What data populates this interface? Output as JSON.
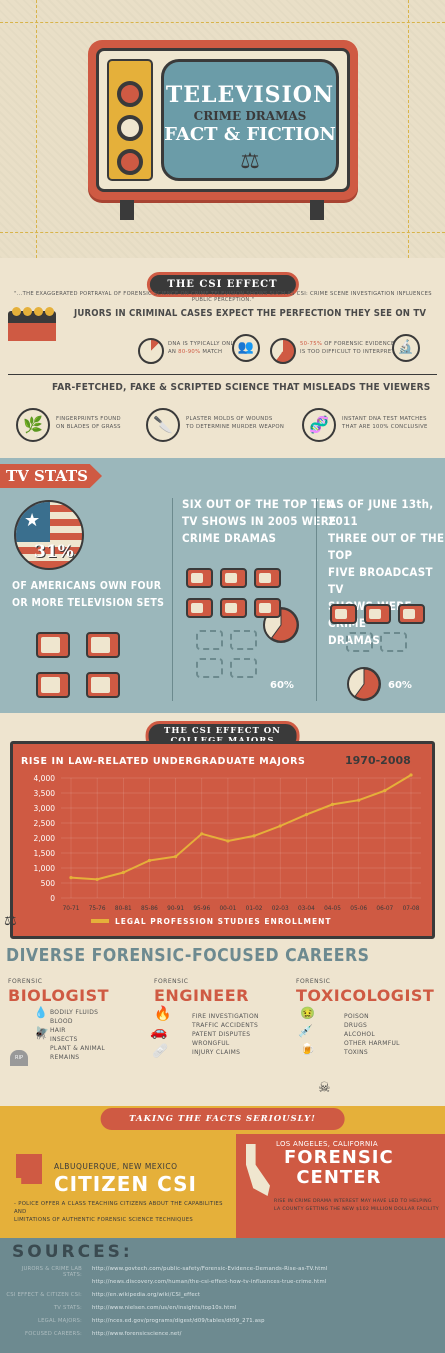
{
  "colors": {
    "red": "#cf5a43",
    "yellow": "#e5b03a",
    "blue": "#9bb7bb",
    "dark": "#3a3a3a",
    "cream": "#eee4cf"
  },
  "header": {
    "line1": "TELEVISION",
    "line2": "CRIME DRAMAS",
    "line3": "FACT & FICTION",
    "icon": "scales-icon"
  },
  "csi_effect": {
    "banner": "THE CSI EFFECT",
    "quote": "\"...THE EXAGGERATED PORTRAYAL OF FORENSIC SCIENCE ON CRIME TELEVISION SHOWS SUCH AS CSI: CRIME SCENE INVESTIGATION INFLUENCES PUBLIC PERCEPTION.\"",
    "jurors_heading": "JURORS IN CRIMINAL CASES EXPECT THE PERFECTION THEY SEE ON TV",
    "dna_l1": "DNA IS TYPICALLY ONLY",
    "dna_l2a": "AN",
    "dna_l2b": "80-90%",
    "dna_l2c": "MATCH",
    "evidence_l1a": "50-75%",
    "evidence_l1b": "OF FORENSIC EVIDENCE",
    "evidence_l2": "IS TOO DIFFICULT TO INTERPRET",
    "fake_heading": "FAR-FETCHED, FAKE & SCRIPTED SCIENCE THAT MISLEADS THE VIEWERS",
    "item1_l1": "FINGERPRINTS FOUND",
    "item1_l2": "ON BLADES OF GRASS",
    "item2_l1": "PLASTER MOLDS OF WOUNDS",
    "item2_l2": "TO DETERMINE MURDER WEAPON",
    "item3_l1": "INSTANT DNA TEST MATCHES",
    "item3_l2": "THAT ARE 100% CONCLUSIVE"
  },
  "tv_stats": {
    "title": "TV STATS",
    "percent": "31%",
    "americans_l1": "OF AMERICANS OWN FOUR",
    "americans_l2": "OR MORE TELEVISION SETS",
    "top_ten_l1": "SIX OUT OF THE TOP TEN",
    "top_ten_l2": "TV SHOWS IN 2005 WERE",
    "top_ten_l3": "CRIME DRAMAS",
    "top_ten_pct": "60%",
    "june_l1": "AS OF JUNE 13th, 2011",
    "june_l2": "THREE OUT OF THE TOP",
    "june_l3": "FIVE BROADCAST TV",
    "june_l4": "SHOWS WERE CRIME",
    "june_l5": "DRAMAS",
    "june_pct": "60%",
    "top_ten_fraction": 0.6,
    "june_fraction": 0.6
  },
  "college": {
    "banner_l1": "THE CSI EFFECT ON",
    "banner_l2": "COLLEGE MAJORS"
  },
  "chart_data": {
    "type": "line",
    "title": "RISE IN LAW-RELATED UNDERGRADUATE MAJORS",
    "title_years": "1970-2008",
    "categories": [
      "70-71",
      "75-76",
      "80-81",
      "85-86",
      "90-91",
      "95-96",
      "00-01",
      "01-02",
      "02-03",
      "03-04",
      "04-05",
      "05-06",
      "06-07",
      "07-08"
    ],
    "y_ticks": [
      "4,000",
      "3,500",
      "3,000",
      "2,500",
      "2,000",
      "1,500",
      "1,000",
      "500",
      "0"
    ],
    "ylim": [
      0,
      4000
    ],
    "grid": true,
    "series": [
      {
        "name": "LEGAL PROFESSION STUDIES ENROLLMENT",
        "values": [
          680,
          620,
          850,
          1250,
          1380,
          2140,
          1900,
          2070,
          2400,
          2780,
          3120,
          3260,
          3580,
          4100
        ]
      }
    ],
    "legend_position": "bottom"
  },
  "careers": {
    "heading": "DIVERSE FORENSIC-FOCUSED CAREERS",
    "bio": {
      "sub": "FORENSIC",
      "title": "BIOLOGIST",
      "items": [
        "BODILY FLUIDS",
        "BLOOD",
        "HAIR",
        "INSECTS",
        "PLANT & ANIMAL",
        "REMAINS"
      ]
    },
    "eng": {
      "sub": "FORENSIC",
      "title": "ENGINEER",
      "items": [
        "FIRE INVESTIGATION",
        "TRAFFIC ACCIDENTS",
        "PATENT DISPUTES",
        "WRONGFUL",
        "INJURY CLAIMS"
      ]
    },
    "tox": {
      "sub": "FORENSIC",
      "title": "TOXICOLOGIST",
      "items": [
        "POISON",
        "DRUGS",
        "ALCOHOL",
        "OTHER HARMFUL",
        "TOXINS"
      ]
    }
  },
  "facts": {
    "banner": "TAKING THE FACTS SERIOUSLY!",
    "citizen": {
      "place": "ALBUQUERQUE, NEW MEXICO",
      "title": "CITIZEN CSI",
      "desc_l1": "- POLICE OFFER A CLASS TEACHING CITIZENS ABOUT THE CAPABILITIES AND",
      "desc_l2": "LIMITATIONS OF AUTHENTIC FORENSIC SCIENCE TECHNIQUES"
    },
    "forensic": {
      "place": "LOS ANGELES, CALIFORNIA",
      "title_l1": "FORENSIC",
      "title_l2": "CENTER",
      "desc_l1": "RISE IN CRIME DRAMA INTEREST MAY HAVE LED TO HELPING",
      "desc_l2": "LA COUNTY GETTING THE NEW $102 MILLION DOLLAR FACILITY"
    }
  },
  "sources": {
    "title": "SOURCES:",
    "rows": [
      {
        "label": "JURORS & CRIME LAB STATS:",
        "url": "http://www.govtech.com/public-safety/Forensic-Evidence-Demands-Rise-as-TV.html"
      },
      {
        "label": "",
        "url": "http://news.discovery.com/human/the-csi-effect-how-tv-influences-true-crime.html"
      },
      {
        "label": "CSI EFFECT & CITIZEN CSI:",
        "url": "http://en.wikipedia.org/wiki/CSI_effect"
      },
      {
        "label": "TV STATS:",
        "url": "http://www.nielsen.com/us/en/insights/top10s.html"
      },
      {
        "label": "LEGAL MAJORS:",
        "url": "http://nces.ed.gov/programs/digest/d09/tables/dt09_271.asp"
      },
      {
        "label": "FOCUSED CAREERS:",
        "url": "http://www.forensicscience.net/"
      }
    ]
  }
}
